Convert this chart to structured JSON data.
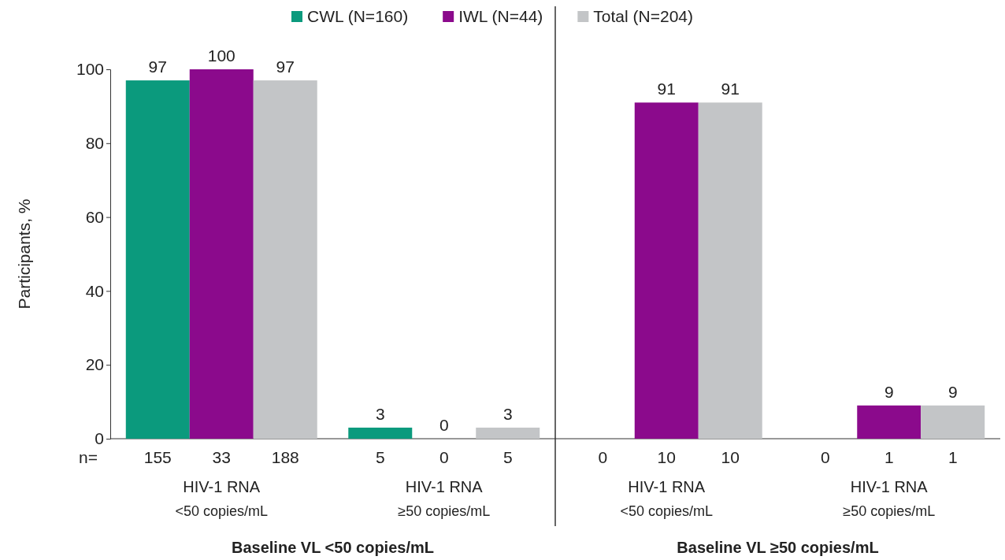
{
  "chart_data": {
    "type": "bar",
    "ylabel": "Participants, %",
    "categories": [
      "HIV-1 RNA\n<50 copies/mL",
      "HIV-1 RNA\n≥50 copies/mL",
      "HIV-1 RNA\n<50 copies/mL",
      "HIV-1 RNA\n≥50 copies/mL"
    ],
    "series": [
      {
        "name": "CWL (N=160)",
        "color": "#0b9a7d",
        "values": [
          97,
          3,
          0,
          0
        ],
        "value_labels": [
          "97",
          "3",
          null,
          null
        ]
      },
      {
        "name": "IWL (N=44)",
        "color": "#8b0a8c",
        "values": [
          100,
          0,
          91,
          9
        ],
        "value_labels": [
          "100",
          "0",
          "91",
          "9"
        ]
      },
      {
        "name": "Total (N=204)",
        "color": "#c3c5c7",
        "values": [
          97,
          3,
          91,
          9
        ],
        "value_labels": [
          "97",
          "3",
          "91",
          "9"
        ]
      }
    ],
    "ylim": [
      0,
      100
    ],
    "yticks": [
      0,
      20,
      40,
      60,
      80,
      100
    ],
    "legend": "top",
    "annotations": [
      "n=",
      "155",
      "33",
      "188",
      "5",
      "0",
      "5",
      "0",
      "10",
      "10",
      "0",
      "1",
      "1",
      "Baseline VL <50 copies/mL",
      "Baseline VL ≥50 copies/mL"
    ]
  }
}
